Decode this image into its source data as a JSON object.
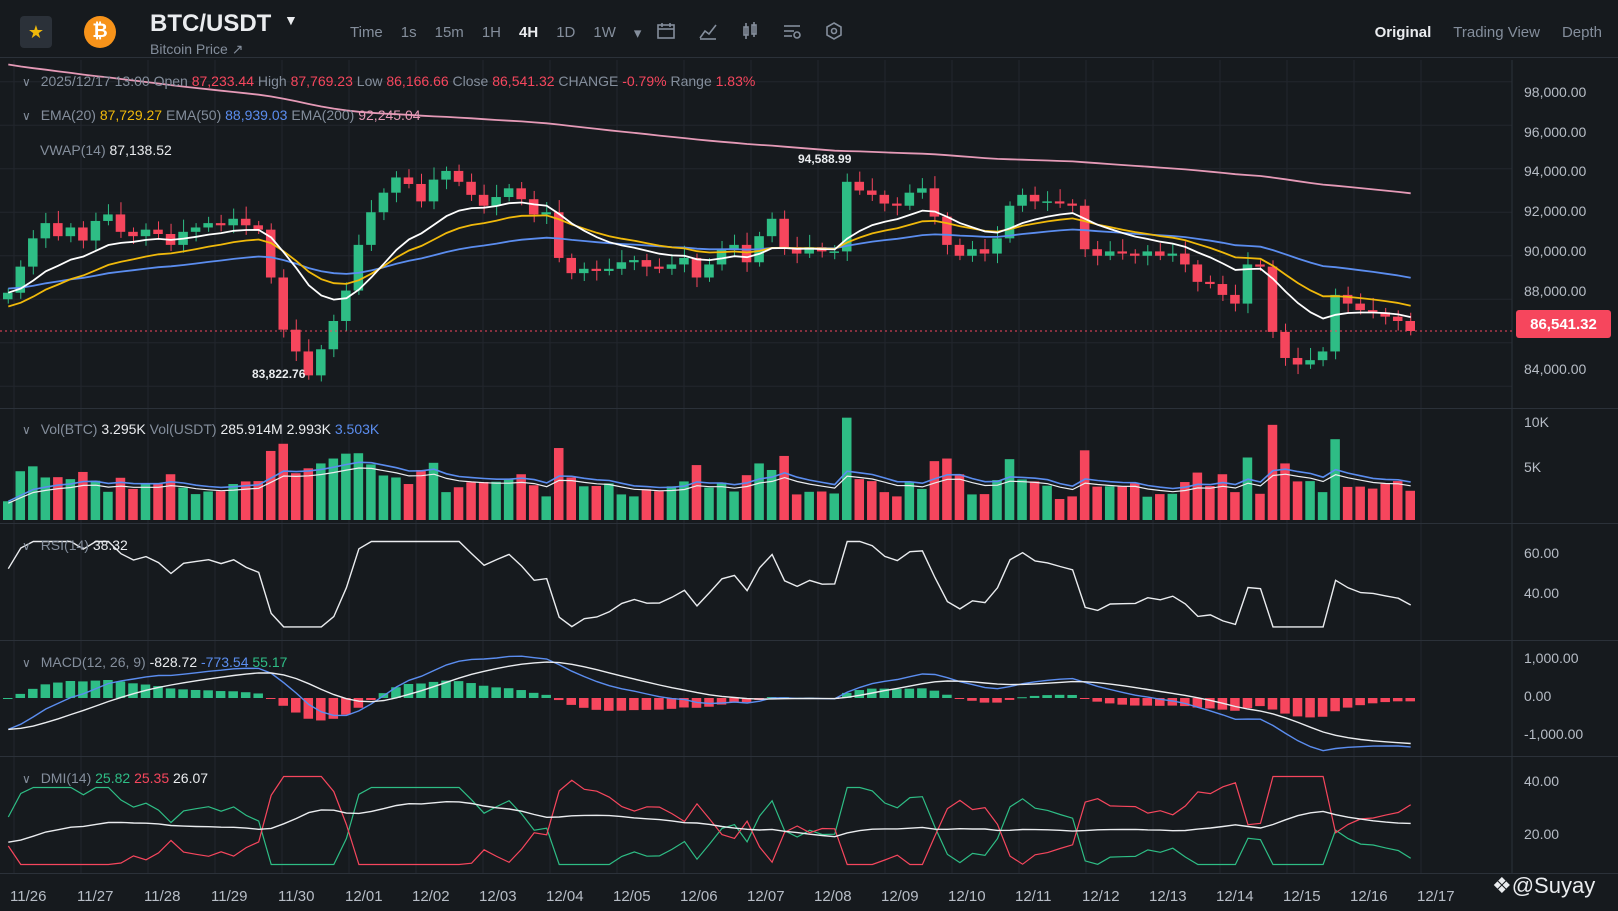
{
  "header": {
    "pair": "BTC/USDT",
    "subtitle": "Bitcoin Price ↗",
    "coin_glyph": "₿",
    "intervals": [
      "Time",
      "1s",
      "15m",
      "1H",
      "4H",
      "1D",
      "1W",
      "▾"
    ],
    "active_interval": "4H",
    "views": [
      "Original",
      "Trading View",
      "Depth"
    ],
    "active_view": "Original",
    "icons": [
      "calendar-icon",
      "line-chart-icon",
      "candle-icon",
      "indicator-icon",
      "settings-hex-icon"
    ]
  },
  "ohlc": {
    "date": "2025/12/17 13:00",
    "open_label": "Open",
    "open": "87,233.44",
    "high_label": "High",
    "high": "87,769.23",
    "low_label": "Low",
    "low": "86,166.66",
    "close_label": "Close",
    "close": "86,541.32",
    "change_label": "CHANGE",
    "change": "-0.79%",
    "range_label": "Range",
    "range": "1.83%"
  },
  "ema": {
    "ema20_label": "EMA(20)",
    "ema20": "87,729.27",
    "ema50_label": "EMA(50)",
    "ema50": "88,939.03",
    "ema200_label": "EMA(200)",
    "ema200": "92,245.04"
  },
  "vwap": {
    "label": "VWAP(14)",
    "value": "87,138.52"
  },
  "vol": {
    "label": "Vol(BTC)",
    "value": "3.295K",
    "usdt_label": "Vol(USDT)",
    "usdt": "285.914M",
    "ma1": "2.993K",
    "ma2": "3.503K"
  },
  "rsi": {
    "label": "RSI(14)",
    "value": "38.32"
  },
  "macd": {
    "label": "MACD(12, 26, 9)",
    "dif": "-828.72",
    "dea": "-773.54",
    "hist": "55.17"
  },
  "dmi": {
    "label": "DMI(14)",
    "pdi": "25.82",
    "mdi": "25.35",
    "adx": "26.07"
  },
  "price_axis": [
    "98,000.00",
    "96,000.00",
    "94,000.00",
    "92,000.00",
    "90,000.00",
    "88,000.00",
    "84,000.00"
  ],
  "current_price": "86,541.32",
  "vol_axis": [
    "10K",
    "5K"
  ],
  "rsi_axis": [
    "60.00",
    "40.00"
  ],
  "macd_axis": [
    "1,000.00",
    "0.00",
    "-1,000.00"
  ],
  "dmi_axis": [
    "40.00",
    "20.00"
  ],
  "dates": [
    "11/26",
    "11/27",
    "11/28",
    "11/29",
    "11/30",
    "12/01",
    "12/02",
    "12/03",
    "12/04",
    "12/05",
    "12/06",
    "12/07",
    "12/08",
    "12/09",
    "12/10",
    "12/11",
    "12/12",
    "12/13",
    "12/14",
    "12/15",
    "12/16",
    "12/17"
  ],
  "marks": {
    "high": "94,588.99",
    "low": "83,822.76"
  },
  "watermark": "❖@Suyay",
  "colors": {
    "up": "#2ebd85",
    "down": "#f6465d",
    "ema20": "#f0b90b",
    "ema50": "#5b8def",
    "ema200": "#e59ab7",
    "vwap": "#ffffff"
  },
  "chart_data": {
    "type": "candlestick",
    "interval": "4H",
    "ylim": [
      83000,
      99000
    ],
    "close_series": [
      88300,
      89500,
      90800,
      91500,
      90900,
      91300,
      90700,
      91600,
      91900,
      91100,
      90900,
      91200,
      91000,
      90500,
      91100,
      91300,
      91500,
      91400,
      91700,
      91400,
      91200,
      89000,
      86600,
      85600,
      84500,
      85700,
      87000,
      88400,
      90500,
      92000,
      92900,
      93600,
      93300,
      92500,
      93500,
      93900,
      93400,
      92800,
      92300,
      92700,
      93100,
      92600,
      91900,
      92000,
      89900,
      89200,
      89400,
      89300,
      89400,
      89700,
      89800,
      89500,
      89400,
      89600,
      89900,
      89000,
      89600,
      90300,
      90500,
      89700,
      90900,
      91700,
      90400,
      90100,
      90400,
      90200,
      90200,
      93400,
      93000,
      92800,
      92400,
      92300,
      92900,
      93100,
      91800,
      90500,
      90000,
      90300,
      90100,
      90800,
      92300,
      92800,
      92500,
      92500,
      92400,
      92300,
      90300,
      90000,
      90200,
      90100,
      90000,
      90200,
      90000,
      90100,
      89600,
      88800,
      88700,
      88200,
      87800,
      89600,
      89500,
      86500,
      85300,
      85000,
      85200,
      85600,
      88200,
      87800,
      87500,
      87400,
      87200,
      87000,
      86541
    ]
  }
}
